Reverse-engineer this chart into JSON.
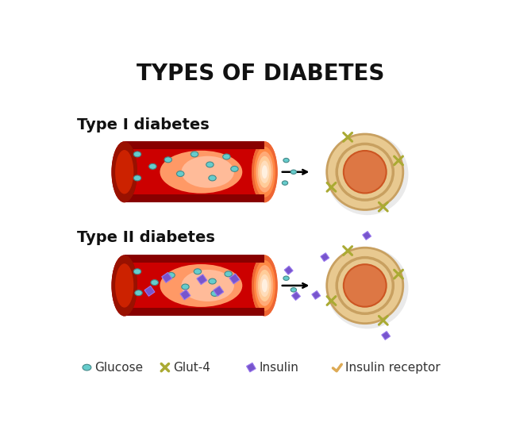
{
  "title": "TYPES OF DIABETES",
  "type1_label": "Type I diabetes",
  "type2_label": "Type II diabetes",
  "bg_color": "#ffffff",
  "title_fontsize": 20,
  "label_fontsize": 14,
  "legend_fontsize": 11,
  "glucose_color": "#66cccc",
  "glucose_dark": "#448888",
  "insulin_color": "#7755cc",
  "insulin_light": "#9977ee",
  "cell_outer_color": "#e8c990",
  "cell_inner_color": "#dd7744",
  "cell_border_color": "#c8a060",
  "glut4_color": "#aaaa33",
  "receptor_color": "#ddaa55"
}
